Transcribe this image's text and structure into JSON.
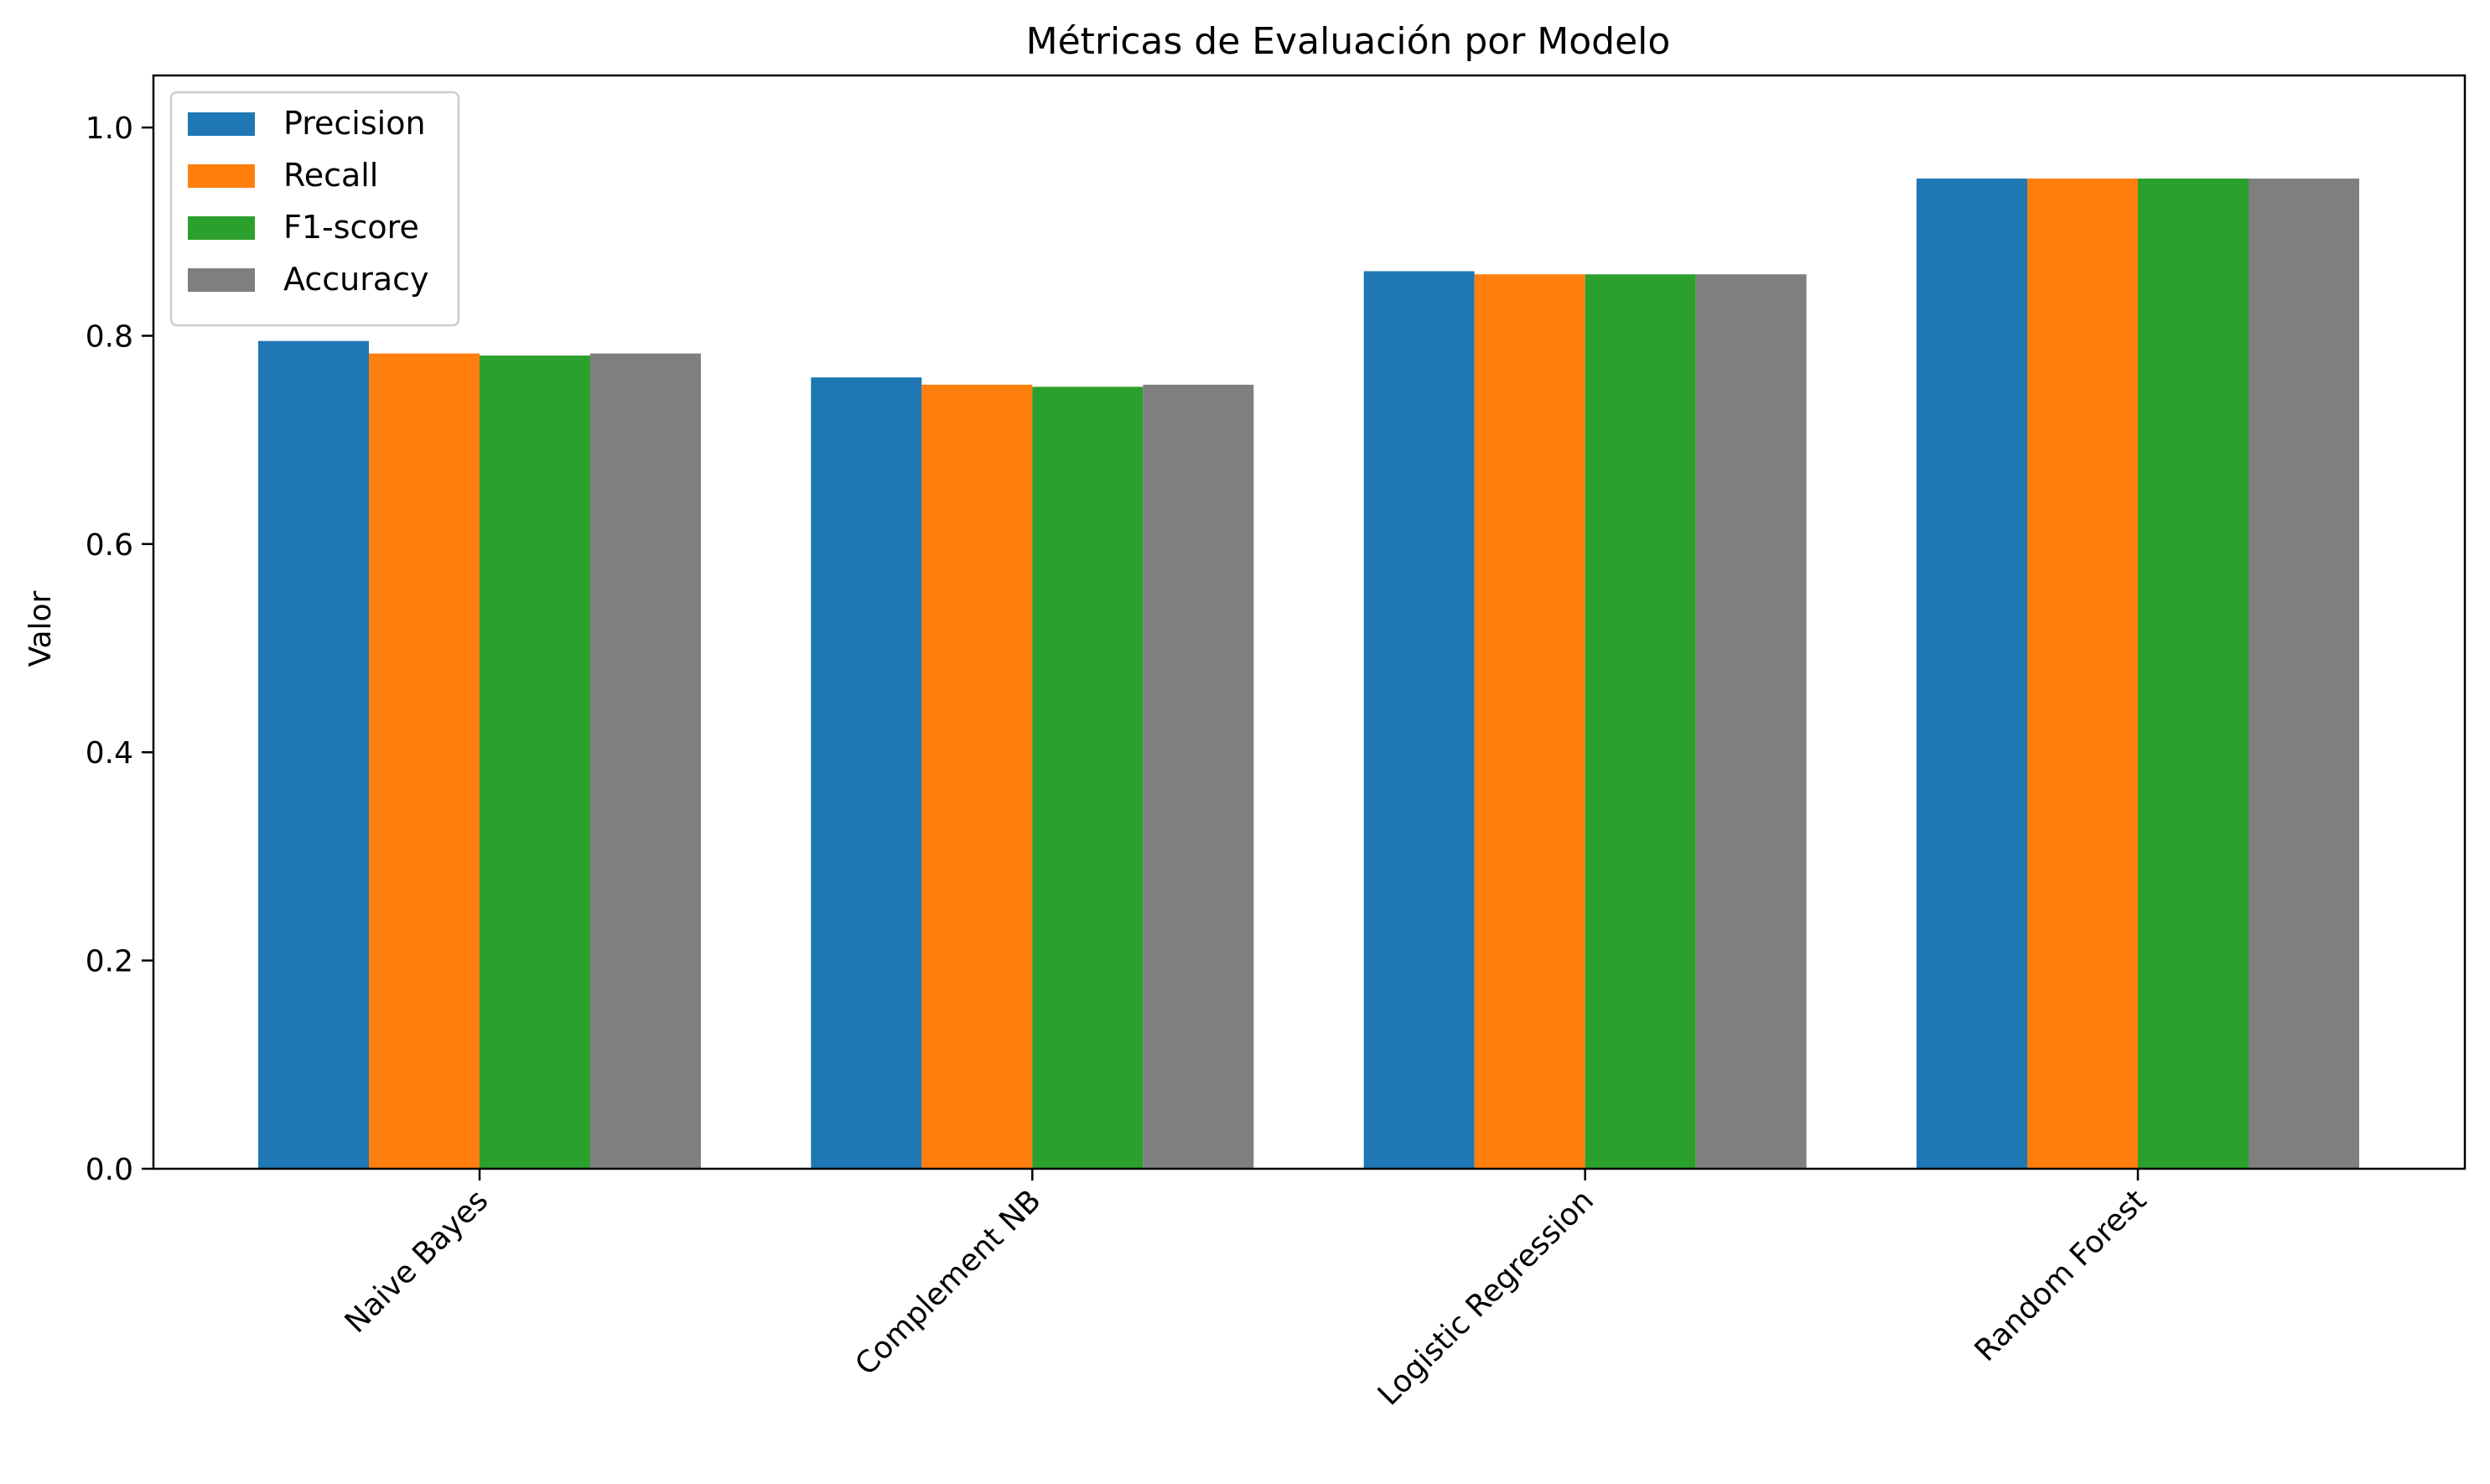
{
  "chart_data": {
    "type": "bar",
    "title": "Métricas de Evaluación por Modelo",
    "xlabel": "",
    "ylabel": "Valor",
    "ylim": [
      0,
      1.05
    ],
    "yticks": [
      "0.0",
      "0.2",
      "0.4",
      "0.6",
      "0.8",
      "1.0"
    ],
    "grid": false,
    "legend_position": "top-left",
    "categories": [
      "Naive Bayes",
      "Complement NB",
      "Logistic Regression",
      "Random Forest"
    ],
    "series": [
      {
        "name": "Precision",
        "color": "#1f77b4",
        "values": [
          0.795,
          0.76,
          0.862,
          0.951
        ]
      },
      {
        "name": "Recall",
        "color": "#ff7f0e",
        "values": [
          0.783,
          0.753,
          0.859,
          0.951
        ]
      },
      {
        "name": "F1-score",
        "color": "#2ca02c",
        "values": [
          0.781,
          0.751,
          0.859,
          0.951
        ]
      },
      {
        "name": "Accuracy",
        "color": "#7f7f7f",
        "values": [
          0.783,
          0.753,
          0.859,
          0.951
        ]
      }
    ]
  }
}
